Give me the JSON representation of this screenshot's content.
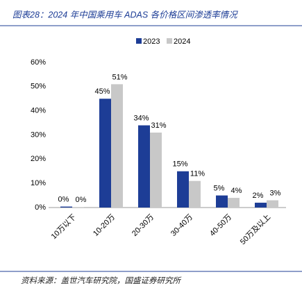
{
  "chart_data": {
    "type": "bar",
    "title": "图表28：2024 年中国乘用车 ADAS 各价格区间渗透率情况",
    "source": "资料来源：盖世汽车研究院，国盛证券研究所",
    "categories": [
      "10万以下",
      "10-20万",
      "20-30万",
      "30-40万",
      "40-50万",
      "50万及以上"
    ],
    "series": [
      {
        "name": "2023",
        "color": "#1d3d96",
        "values": [
          0.4,
          45,
          34,
          15,
          5,
          2
        ],
        "value_labels": [
          "0%",
          "45%",
          "34%",
          "15%",
          "5%",
          "2%"
        ]
      },
      {
        "name": "2024",
        "color": "#c8c8c8",
        "values": [
          0.2,
          51,
          31,
          11,
          4,
          3
        ],
        "value_labels": [
          "0%",
          "51%",
          "31%",
          "11%",
          "4%",
          "3%"
        ]
      }
    ],
    "ylim": [
      0,
      60
    ],
    "yticks": [
      {
        "value": 0,
        "label": "0%"
      },
      {
        "value": 10,
        "label": "10%"
      },
      {
        "value": 20,
        "label": "20%"
      },
      {
        "value": 30,
        "label": "30%"
      },
      {
        "value": 40,
        "label": "40%"
      },
      {
        "value": 50,
        "label": "50%"
      },
      {
        "value": 60,
        "label": "60%"
      }
    ],
    "legend": "top"
  }
}
